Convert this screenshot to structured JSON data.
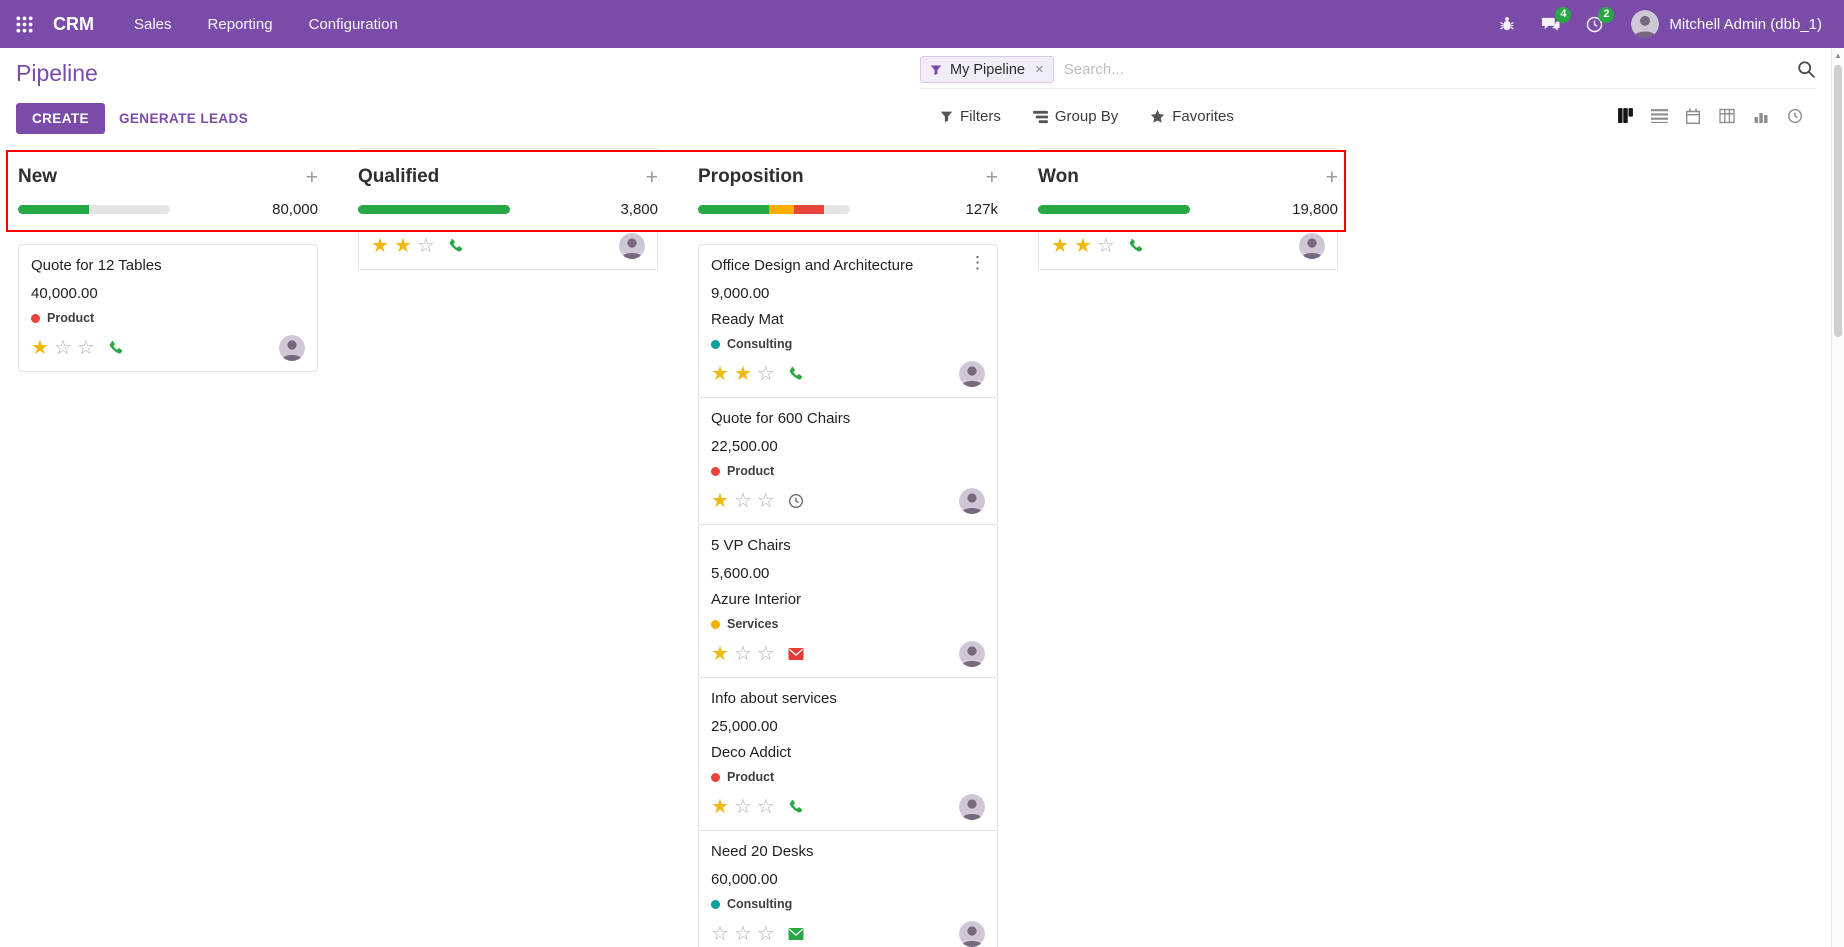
{
  "colors": {
    "brand": "#7a4ba8",
    "badge_green": "#28a745",
    "progress_green": "#28a745",
    "progress_orange": "#ffac00",
    "progress_red": "#e8453c",
    "progress_empty": "#e4e4e4",
    "star_gold": "#efb810",
    "annotation_red": "#ff0000"
  },
  "navbar": {
    "app_name": "CRM",
    "menus": [
      "Sales",
      "Reporting",
      "Configuration"
    ],
    "messages_badge": "4",
    "activities_badge": "2",
    "user_name": "Mitchell Admin (dbb_1)"
  },
  "control_panel": {
    "title": "Pipeline",
    "facet_label": "My Pipeline",
    "facet_remove": "×",
    "search_placeholder": "Search...",
    "create_label": "CREATE",
    "generate_leads_label": "GENERATE LEADS",
    "filters_label": "Filters",
    "group_by_label": "Group By",
    "favorites_label": "Favorites",
    "view_switcher": [
      "kanban",
      "list",
      "calendar",
      "pivot",
      "graph",
      "activity"
    ],
    "active_view": "kanban"
  },
  "board": {
    "columns": [
      {
        "title": "New",
        "amount": "80,000",
        "add_label": "+",
        "progress": [
          {
            "color": "#28a745",
            "pct": 47
          },
          {
            "color": "#e4e4e4",
            "pct": 53
          }
        ],
        "partial_first_card": null,
        "cards": [
          {
            "title": "Quote for 12 Tables",
            "amount": "40,000.00",
            "partner": "",
            "tag": {
              "label": "Product",
              "color": "#e8443b"
            },
            "stars": 1,
            "activity": {
              "type": "phone",
              "color": "#28a745"
            },
            "menu": false
          }
        ]
      },
      {
        "title": "Qualified",
        "amount": "3,800",
        "add_label": "+",
        "progress": [
          {
            "color": "#28a745",
            "pct": 100
          }
        ],
        "partial_first_card": {
          "stars": 2,
          "activity": {
            "type": "phone",
            "color": "#28a745"
          }
        },
        "cards": []
      },
      {
        "title": "Proposition",
        "amount": "127k",
        "add_label": "+",
        "progress": [
          {
            "color": "#28a745",
            "pct": 47
          },
          {
            "color": "#ffac00",
            "pct": 16
          },
          {
            "color": "#e8453c",
            "pct": 20
          },
          {
            "color": "#e4e4e4",
            "pct": 17
          }
        ],
        "partial_first_card": null,
        "cards": [
          {
            "title": "Office Design and Architecture",
            "amount": "9,000.00",
            "partner": "Ready Mat",
            "tag": {
              "label": "Consulting",
              "color": "#00a09b"
            },
            "stars": 2,
            "activity": {
              "type": "phone",
              "color": "#28a745"
            },
            "menu": true
          },
          {
            "title": "Quote for 600 Chairs",
            "amount": "22,500.00",
            "partner": "",
            "tag": {
              "label": "Product",
              "color": "#e8443b"
            },
            "stars": 1,
            "activity": {
              "type": "clock",
              "color": "#6e6e6e"
            },
            "menu": false
          },
          {
            "title": "5 VP Chairs",
            "amount": "5,600.00",
            "partner": "Azure Interior",
            "tag": {
              "label": "Services",
              "color": "#edb200"
            },
            "stars": 1,
            "activity": {
              "type": "envelope",
              "color": "#e23c39"
            },
            "menu": false
          },
          {
            "title": "Info about services",
            "amount": "25,000.00",
            "partner": "Deco Addict",
            "tag": {
              "label": "Product",
              "color": "#e8443b"
            },
            "stars": 1,
            "activity": {
              "type": "phone",
              "color": "#28a745"
            },
            "menu": false
          },
          {
            "title": "Need 20 Desks",
            "amount": "60,000.00",
            "partner": "",
            "tag": {
              "label": "Consulting",
              "color": "#00a09b"
            },
            "stars": 0,
            "activity": {
              "type": "envelope",
              "color": "#28a745"
            },
            "menu": false
          }
        ]
      },
      {
        "title": "Won",
        "amount": "19,800",
        "add_label": "+",
        "progress": [
          {
            "color": "#28a745",
            "pct": 100
          }
        ],
        "partial_first_card": {
          "stars": 2,
          "activity": {
            "type": "phone",
            "color": "#28a745"
          }
        },
        "cards": []
      }
    ]
  }
}
